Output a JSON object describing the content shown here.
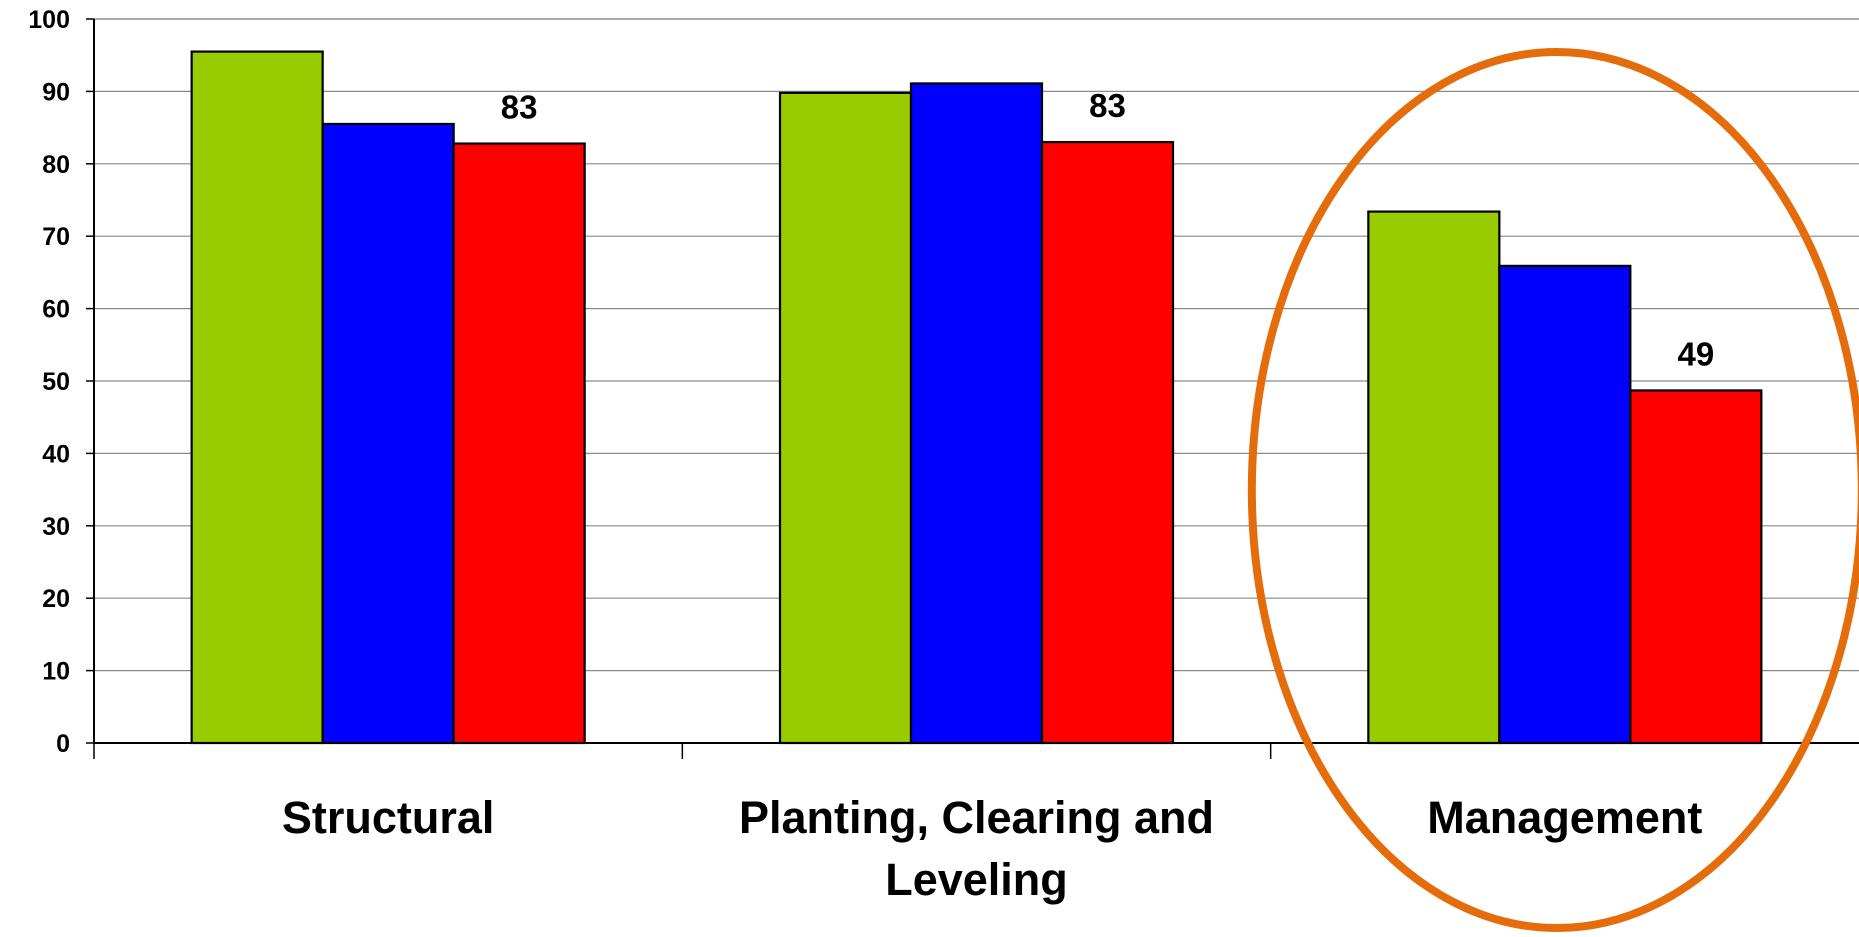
{
  "chart_data": {
    "type": "bar",
    "categories": [
      "Structural",
      "Planting, Clearing and Leveling",
      "Management"
    ],
    "category_label_lines": [
      [
        "Structural"
      ],
      [
        "Planting, Clearing and",
        "Leveling"
      ],
      [
        "Management"
      ]
    ],
    "series": [
      {
        "color": "#99cc00",
        "values": [
          95.5,
          89.8,
          73.4
        ]
      },
      {
        "color": "#0000ff",
        "values": [
          85.5,
          91.1,
          65.9
        ]
      },
      {
        "color": "#ff0000",
        "values": [
          82.8,
          83.0,
          48.7
        ],
        "data_labels": [
          "83",
          "83",
          "49"
        ]
      }
    ],
    "ylim": [
      0,
      100
    ],
    "yticks": [
      "0",
      "10",
      "20",
      "30",
      "40",
      "50",
      "60",
      "70",
      "80",
      "90",
      "100"
    ],
    "grid": true,
    "legend": "none",
    "highlight": {
      "category": "Management",
      "shape": "ellipse",
      "color": "#e46c0a"
    }
  }
}
